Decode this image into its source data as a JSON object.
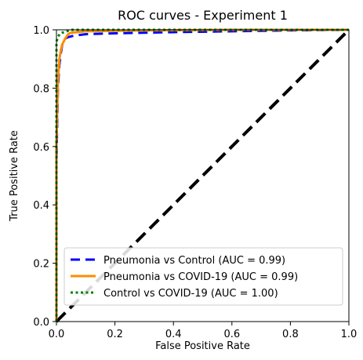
{
  "chart_data": {
    "type": "line",
    "title": "ROC curves - Experiment 1",
    "xlabel": "False Positive Rate",
    "ylabel": "True Positive Rate",
    "xlim": [
      0.0,
      1.0
    ],
    "ylim": [
      0.0,
      1.0
    ],
    "xticks": [
      "0.0",
      "0.2",
      "0.4",
      "0.6",
      "0.8",
      "1.0"
    ],
    "yticks": [
      "0.0",
      "0.2",
      "0.4",
      "0.6",
      "0.8",
      "1.0"
    ],
    "grid": false,
    "legend_position": "lower-right",
    "series": [
      {
        "name": "Pneumonia vs Control (AUC = 0.99)",
        "color": "#0000ff",
        "style": "dashed",
        "x": [
          0.0,
          0.0,
          0.005,
          0.01,
          0.015,
          0.02,
          0.03,
          0.04,
          0.06,
          0.1,
          0.2,
          0.4,
          0.6,
          0.8,
          1.0
        ],
        "y": [
          0.0,
          0.55,
          0.8,
          0.88,
          0.92,
          0.95,
          0.97,
          0.975,
          0.98,
          0.985,
          0.988,
          0.992,
          0.995,
          0.998,
          1.0
        ]
      },
      {
        "name": "Pneumonia vs COVID-19 (AUC = 0.99)",
        "color": "#ff8c00",
        "style": "solid",
        "x": [
          0.0,
          0.0,
          0.005,
          0.01,
          0.015,
          0.02,
          0.03,
          0.04,
          0.05,
          0.1,
          0.3,
          0.6,
          1.0
        ],
        "y": [
          0.0,
          0.6,
          0.82,
          0.9,
          0.93,
          0.95,
          0.97,
          0.985,
          0.99,
          0.995,
          0.998,
          1.0,
          1.0
        ]
      },
      {
        "name": "Control vs COVID-19 (AUC = 1.00)",
        "color": "#008000",
        "style": "dotted",
        "x": [
          0.0,
          0.0,
          0.01,
          0.02,
          0.05,
          1.0
        ],
        "y": [
          0.0,
          0.96,
          0.985,
          0.99,
          1.0,
          1.0
        ]
      },
      {
        "name": "",
        "color": "#000000",
        "style": "dashed",
        "x": [
          0.0,
          1.0
        ],
        "y": [
          0.0,
          1.0
        ]
      }
    ]
  }
}
